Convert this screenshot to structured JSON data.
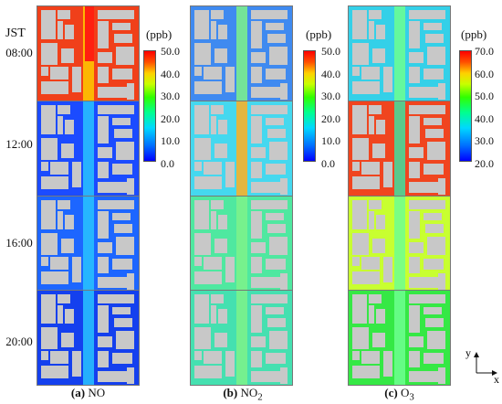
{
  "header": {
    "timezone": "JST"
  },
  "times": [
    "08:00",
    "12:00",
    "16:00",
    "20:00"
  ],
  "colorbars": [
    {
      "unit": "(ppb)",
      "ticks": [
        "50.0",
        "40.0",
        "30.0",
        "20.0",
        "10.0",
        "0.0"
      ]
    },
    {
      "unit": "(ppb)",
      "ticks": [
        "50.0",
        "40.0",
        "30.0",
        "20.0",
        "10.0",
        "0.0"
      ]
    },
    {
      "unit": "(ppb)",
      "ticks": [
        "70.0",
        "60.0",
        "50.0",
        "40.0",
        "30.0",
        "20.0"
      ]
    }
  ],
  "captions": [
    {
      "letter": "(a)",
      "label": "NO",
      "sub": ""
    },
    {
      "letter": "(b)",
      "label": "NO",
      "sub": "2"
    },
    {
      "letter": "(c)",
      "label": "O",
      "sub": "3"
    }
  ],
  "axes": {
    "x": "x",
    "y": "y"
  },
  "colors": {
    "building": "#c8c8c8",
    "no": [
      "#f0401a",
      "#1b4bff",
      "#1d66ff",
      "#1440ee"
    ],
    "no2": [
      "#3f8af0",
      "#45d8ef",
      "#4fe8a0",
      "#45e0b0"
    ],
    "o3": [
      "#34d0e8",
      "#f0451f",
      "#c8ff30",
      "#35e845"
    ]
  }
}
